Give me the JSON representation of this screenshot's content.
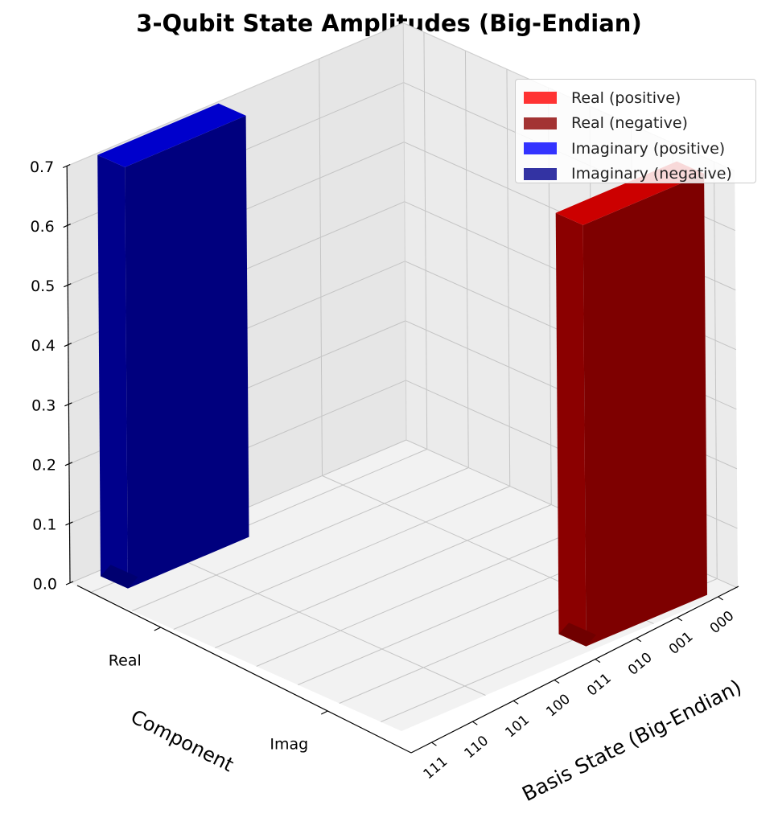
{
  "chart_data": {
    "type": "bar3d",
    "title": "3-Qubit State Amplitudes (Big-Endian)",
    "xlabel": "Basis State (Big-Endian)",
    "ylabel": "Component",
    "zlabel": "",
    "x_categories": [
      "000",
      "001",
      "010",
      "011",
      "100",
      "101",
      "110",
      "111"
    ],
    "y_categories": [
      "Real",
      "Imag"
    ],
    "zlim": [
      0,
      0.7
    ],
    "z_ticks": [
      "0.0",
      "0.1",
      "0.2",
      "0.3",
      "0.4",
      "0.5",
      "0.6",
      "0.7"
    ],
    "grid": true,
    "legend_position": "top-right",
    "legend": [
      {
        "label": "Real (positive)",
        "color": "#ff3333"
      },
      {
        "label": "Real (negative)",
        "color": "#a33333"
      },
      {
        "label": "Imaginary (positive)",
        "color": "#3333ff"
      },
      {
        "label": "Imaginary (negative)",
        "color": "#3333a3"
      }
    ],
    "bars": [
      {
        "basis_state": "111",
        "component": "Real",
        "value": 0.7071,
        "color": "#cc0000"
      },
      {
        "basis_state": "000",
        "component": "Imag",
        "value": 0.7071,
        "color": "#0000cc"
      }
    ]
  }
}
